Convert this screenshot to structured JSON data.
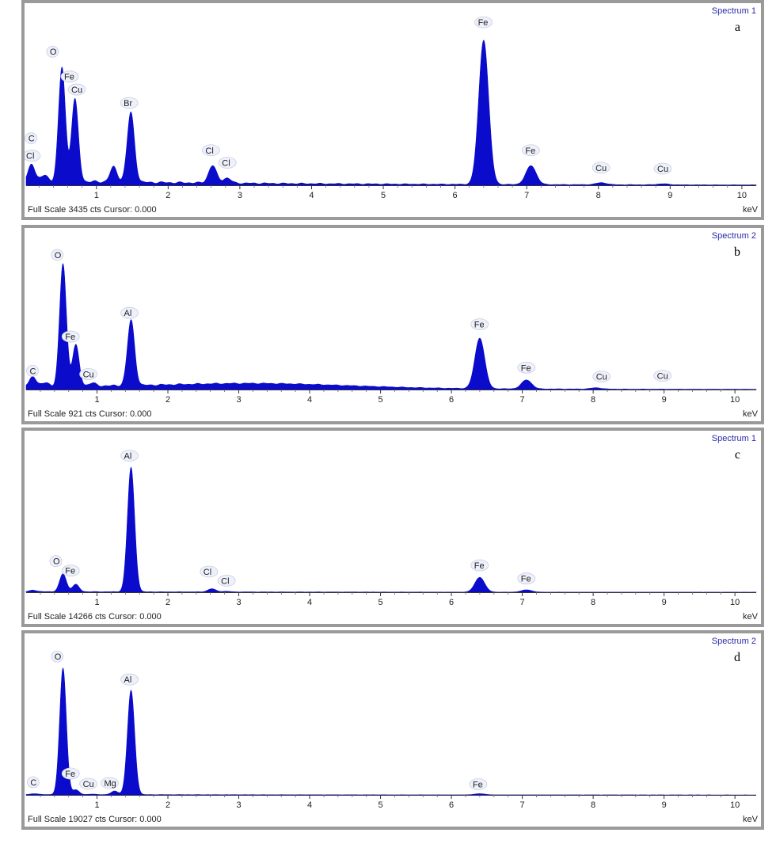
{
  "chart_data": [
    {
      "type": "area",
      "panel": "a",
      "title": "Spectrum 1",
      "full_scale_text": "Full Scale 3435 cts Cursor: 0.000",
      "xlabel": "keV",
      "x_ticks": [
        "1",
        "2",
        "3",
        "4",
        "5",
        "6",
        "7",
        "8",
        "9",
        "10"
      ],
      "xlim": [
        0.02,
        10.2
      ],
      "ylim": [
        0,
        3435
      ],
      "fill_color": "#0b0bcc",
      "series": [
        {
          "peaks": [
            {
              "x": 0.1,
              "y": 350
            },
            {
              "x": 0.28,
              "y": 120
            },
            {
              "x": 0.52,
              "y": 2300
            },
            {
              "x": 0.7,
              "y": 1650
            },
            {
              "x": 1.24,
              "y": 300
            },
            {
              "x": 1.48,
              "y": 1400
            },
            {
              "x": 2.62,
              "y": 350
            },
            {
              "x": 2.82,
              "y": 100
            },
            {
              "x": 6.4,
              "y": 2900
            },
            {
              "x": 7.06,
              "y": 380
            },
            {
              "x": 8.04,
              "y": 40
            },
            {
              "x": 8.9,
              "y": 20
            }
          ],
          "background": 90
        }
      ],
      "annotations": [
        {
          "text": "O",
          "x": 0.35,
          "y": 2620
        },
        {
          "text": "Fe",
          "x": 0.55,
          "y": 2120
        },
        {
          "text": "Cu",
          "x": 0.65,
          "y": 1860
        },
        {
          "text": "C",
          "x": 0.05,
          "y": 880
        },
        {
          "text": "Cl",
          "x": 0.02,
          "y": 530
        },
        {
          "text": "Br",
          "x": 1.38,
          "y": 1590
        },
        {
          "text": "Cl",
          "x": 2.52,
          "y": 640
        },
        {
          "text": "Cl",
          "x": 2.75,
          "y": 390
        },
        {
          "text": "Fe",
          "x": 6.32,
          "y": 3210
        },
        {
          "text": "Fe",
          "x": 6.98,
          "y": 640
        },
        {
          "text": "Cu",
          "x": 7.96,
          "y": 290
        },
        {
          "text": "Cu",
          "x": 8.82,
          "y": 270
        }
      ]
    },
    {
      "type": "area",
      "panel": "b",
      "title": "Spectrum 2",
      "full_scale_text": "Full Scale 921 cts Cursor: 0.000",
      "xlabel": "keV",
      "x_ticks": [
        "1",
        "2",
        "3",
        "4",
        "5",
        "6",
        "7",
        "8",
        "9",
        "10"
      ],
      "xlim": [
        0.0,
        10.3
      ],
      "ylim": [
        0,
        921
      ],
      "fill_color": "#0b0bcc",
      "series": [
        {
          "peaks": [
            {
              "x": 0.1,
              "y": 60
            },
            {
              "x": 0.28,
              "y": 20
            },
            {
              "x": 0.52,
              "y": 750
            },
            {
              "x": 0.7,
              "y": 250
            },
            {
              "x": 0.93,
              "y": 18
            },
            {
              "x": 1.48,
              "y": 400
            },
            {
              "x": 6.4,
              "y": 310
            },
            {
              "x": 7.06,
              "y": 55
            },
            {
              "x": 8.04,
              "y": 8
            }
          ],
          "background": 22,
          "hump": {
            "center": 3.3,
            "width": 1.8,
            "height": 28
          }
        }
      ],
      "annotations": [
        {
          "text": "O",
          "x": 0.4,
          "y": 805
        },
        {
          "text": "Al",
          "x": 1.38,
          "y": 450
        },
        {
          "text": "Fe",
          "x": 0.55,
          "y": 305
        },
        {
          "text": "Cu",
          "x": 0.8,
          "y": 75
        },
        {
          "text": "C",
          "x": 0.05,
          "y": 95
        },
        {
          "text": "Fe",
          "x": 6.32,
          "y": 380
        },
        {
          "text": "Fe",
          "x": 6.98,
          "y": 115
        },
        {
          "text": "Cu",
          "x": 8.04,
          "y": 60
        },
        {
          "text": "Cu",
          "x": 8.9,
          "y": 65
        }
      ]
    },
    {
      "type": "area",
      "panel": "c",
      "title": "Spectrum 1",
      "full_scale_text": "Full Scale 14266 cts Cursor: 0.000",
      "xlabel": "keV",
      "x_ticks": [
        "1",
        "2",
        "3",
        "4",
        "5",
        "6",
        "7",
        "8",
        "9",
        "10"
      ],
      "xlim": [
        0.0,
        10.3
      ],
      "ylim": [
        0,
        14266
      ],
      "fill_color": "#0b0bcc",
      "series": [
        {
          "peaks": [
            {
              "x": 0.1,
              "y": 150
            },
            {
              "x": 0.52,
              "y": 1700
            },
            {
              "x": 0.7,
              "y": 700
            },
            {
              "x": 1.48,
              "y": 11800
            },
            {
              "x": 2.62,
              "y": 300
            },
            {
              "x": 2.82,
              "y": 60
            },
            {
              "x": 6.4,
              "y": 1400
            },
            {
              "x": 7.06,
              "y": 220
            }
          ],
          "background": 60
        }
      ],
      "annotations": [
        {
          "text": "Al",
          "x": 1.38,
          "y": 12650
        },
        {
          "text": "O",
          "x": 0.38,
          "y": 2650
        },
        {
          "text": "Fe",
          "x": 0.55,
          "y": 1750
        },
        {
          "text": "Cl",
          "x": 2.5,
          "y": 1650
        },
        {
          "text": "Cl",
          "x": 2.75,
          "y": 800
        },
        {
          "text": "Fe",
          "x": 6.32,
          "y": 2250
        },
        {
          "text": "Fe",
          "x": 6.98,
          "y": 1000
        }
      ]
    },
    {
      "type": "area",
      "panel": "d",
      "title": "Spectrum 2",
      "full_scale_text": "Full Scale 19027 cts Cursor: 0.000",
      "xlabel": "keV",
      "x_ticks": [
        "1",
        "2",
        "3",
        "4",
        "5",
        "6",
        "7",
        "8",
        "9",
        "10"
      ],
      "xlim": [
        0.0,
        10.3
      ],
      "ylim": [
        0,
        19027
      ],
      "fill_color": "#0b0bcc",
      "series": [
        {
          "peaks": [
            {
              "x": 0.12,
              "y": 120
            },
            {
              "x": 0.52,
              "y": 16000
            },
            {
              "x": 0.7,
              "y": 600
            },
            {
              "x": 0.93,
              "y": 60
            },
            {
              "x": 1.25,
              "y": 450
            },
            {
              "x": 1.48,
              "y": 13200
            },
            {
              "x": 6.4,
              "y": 150
            }
          ],
          "background": 50
        }
      ],
      "annotations": [
        {
          "text": "O",
          "x": 0.4,
          "y": 17100
        },
        {
          "text": "Al",
          "x": 1.38,
          "y": 14200
        },
        {
          "text": "Fe",
          "x": 0.55,
          "y": 2300
        },
        {
          "text": "Cu",
          "x": 0.8,
          "y": 1000
        },
        {
          "text": "Mg",
          "x": 1.1,
          "y": 1100
        },
        {
          "text": "C",
          "x": 0.06,
          "y": 1200
        },
        {
          "text": "Fe",
          "x": 6.3,
          "y": 950
        }
      ]
    }
  ],
  "panels": [
    {
      "letter": "a"
    },
    {
      "letter": "b"
    },
    {
      "letter": "c"
    },
    {
      "letter": "d"
    }
  ]
}
